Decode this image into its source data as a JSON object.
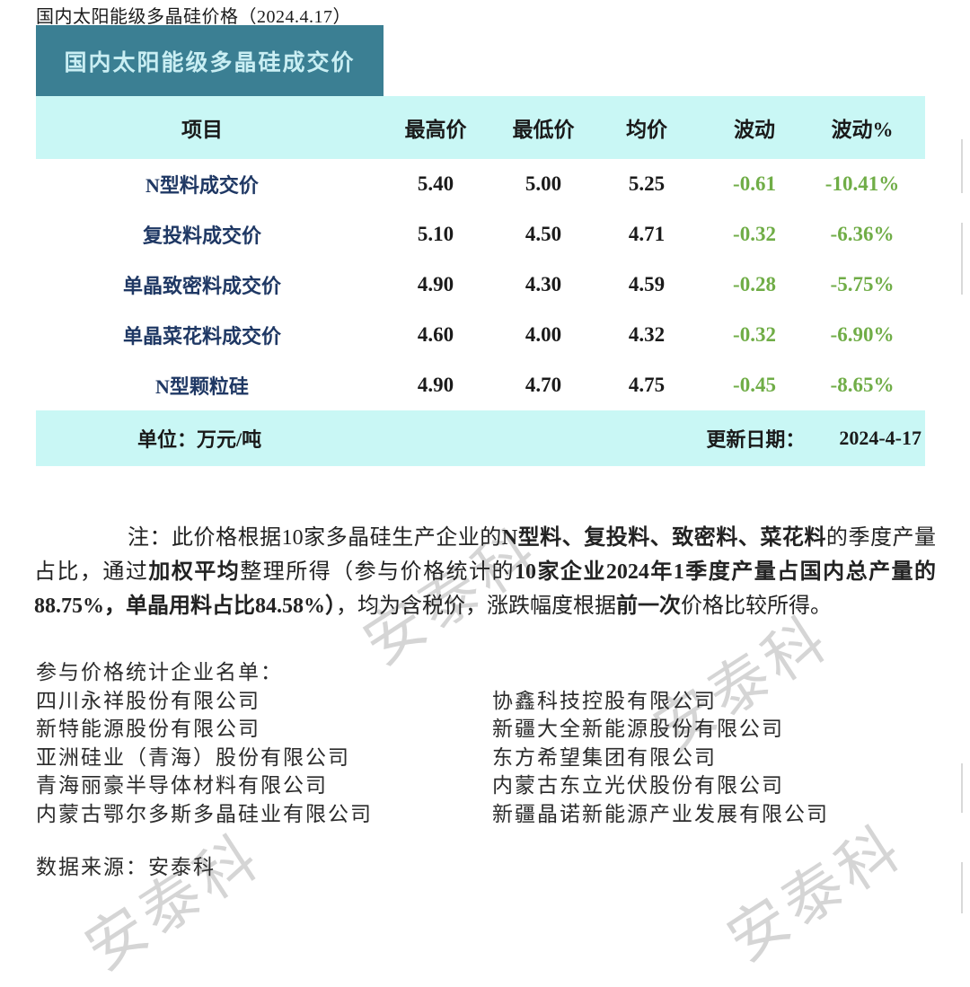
{
  "page": {
    "title": "国内太阳能级多晶硅价格（2024.4.17）",
    "source_line": "数据来源：安泰科",
    "watermark_text": "安泰科"
  },
  "colors": {
    "banner_bg": "#3b7f93",
    "band_bg": "#c9f7f5",
    "item_label": "#1f3864",
    "change_green": "#70ad47"
  },
  "table": {
    "banner": "国内太阳能级多晶硅成交价",
    "columns": [
      "项目",
      "最高价",
      "最低价",
      "均价",
      "波动",
      "波动%"
    ],
    "rows": [
      {
        "item": "N型料成交价",
        "high": "5.40",
        "low": "5.00",
        "avg": "5.25",
        "chg": "-0.61",
        "pct": "-10.41%"
      },
      {
        "item": "复投料成交价",
        "high": "5.10",
        "low": "4.50",
        "avg": "4.71",
        "chg": "-0.32",
        "pct": "-6.36%"
      },
      {
        "item": "单晶致密料成交价",
        "high": "4.90",
        "low": "4.30",
        "avg": "4.59",
        "chg": "-0.28",
        "pct": "-5.75%"
      },
      {
        "item": "单晶菜花料成交价",
        "high": "4.60",
        "low": "4.00",
        "avg": "4.32",
        "chg": "-0.32",
        "pct": "-6.90%"
      },
      {
        "item": "N型颗粒硅",
        "high": "4.90",
        "low": "4.70",
        "avg": "4.75",
        "chg": "-0.45",
        "pct": "-8.65%"
      }
    ],
    "unit": "单位：万元/吨",
    "update_label": "更新日期：",
    "update_date": "2024-4-17"
  },
  "note": {
    "segments": [
      {
        "text": "注：此价格根据10家多晶硅生产企业的",
        "bold": false
      },
      {
        "text": "N型料、复投料、致密料、菜花料",
        "bold": true
      },
      {
        "text": "的季度产量占比，通过",
        "bold": false
      },
      {
        "text": "加权平均",
        "bold": true
      },
      {
        "text": "整理所得（参与价格统计的",
        "bold": false
      },
      {
        "text": "10家企业2024年1季度产量占国内总产量的88.75%，单晶用料占比84.58%）",
        "bold": true
      },
      {
        "text": "，均为含税价，涨跌幅度根据",
        "bold": false
      },
      {
        "text": "前一次",
        "bold": true
      },
      {
        "text": "价格比较所得。",
        "bold": false
      }
    ]
  },
  "participants": {
    "heading": "参与价格统计企业名单：",
    "left": [
      "四川永祥股份有限公司",
      "新特能源股份有限公司",
      "亚洲硅业（青海）股份有限公司",
      "青海丽豪半导体材料有限公司",
      "内蒙古鄂尔多斯多晶硅业有限公司"
    ],
    "right": [
      "协鑫科技控股有限公司",
      "新疆大全新能源股份有限公司",
      "东方希望集团有限公司",
      "内蒙古东立光伏股份有限公司",
      "新疆晶诺新能源产业发展有限公司"
    ]
  }
}
